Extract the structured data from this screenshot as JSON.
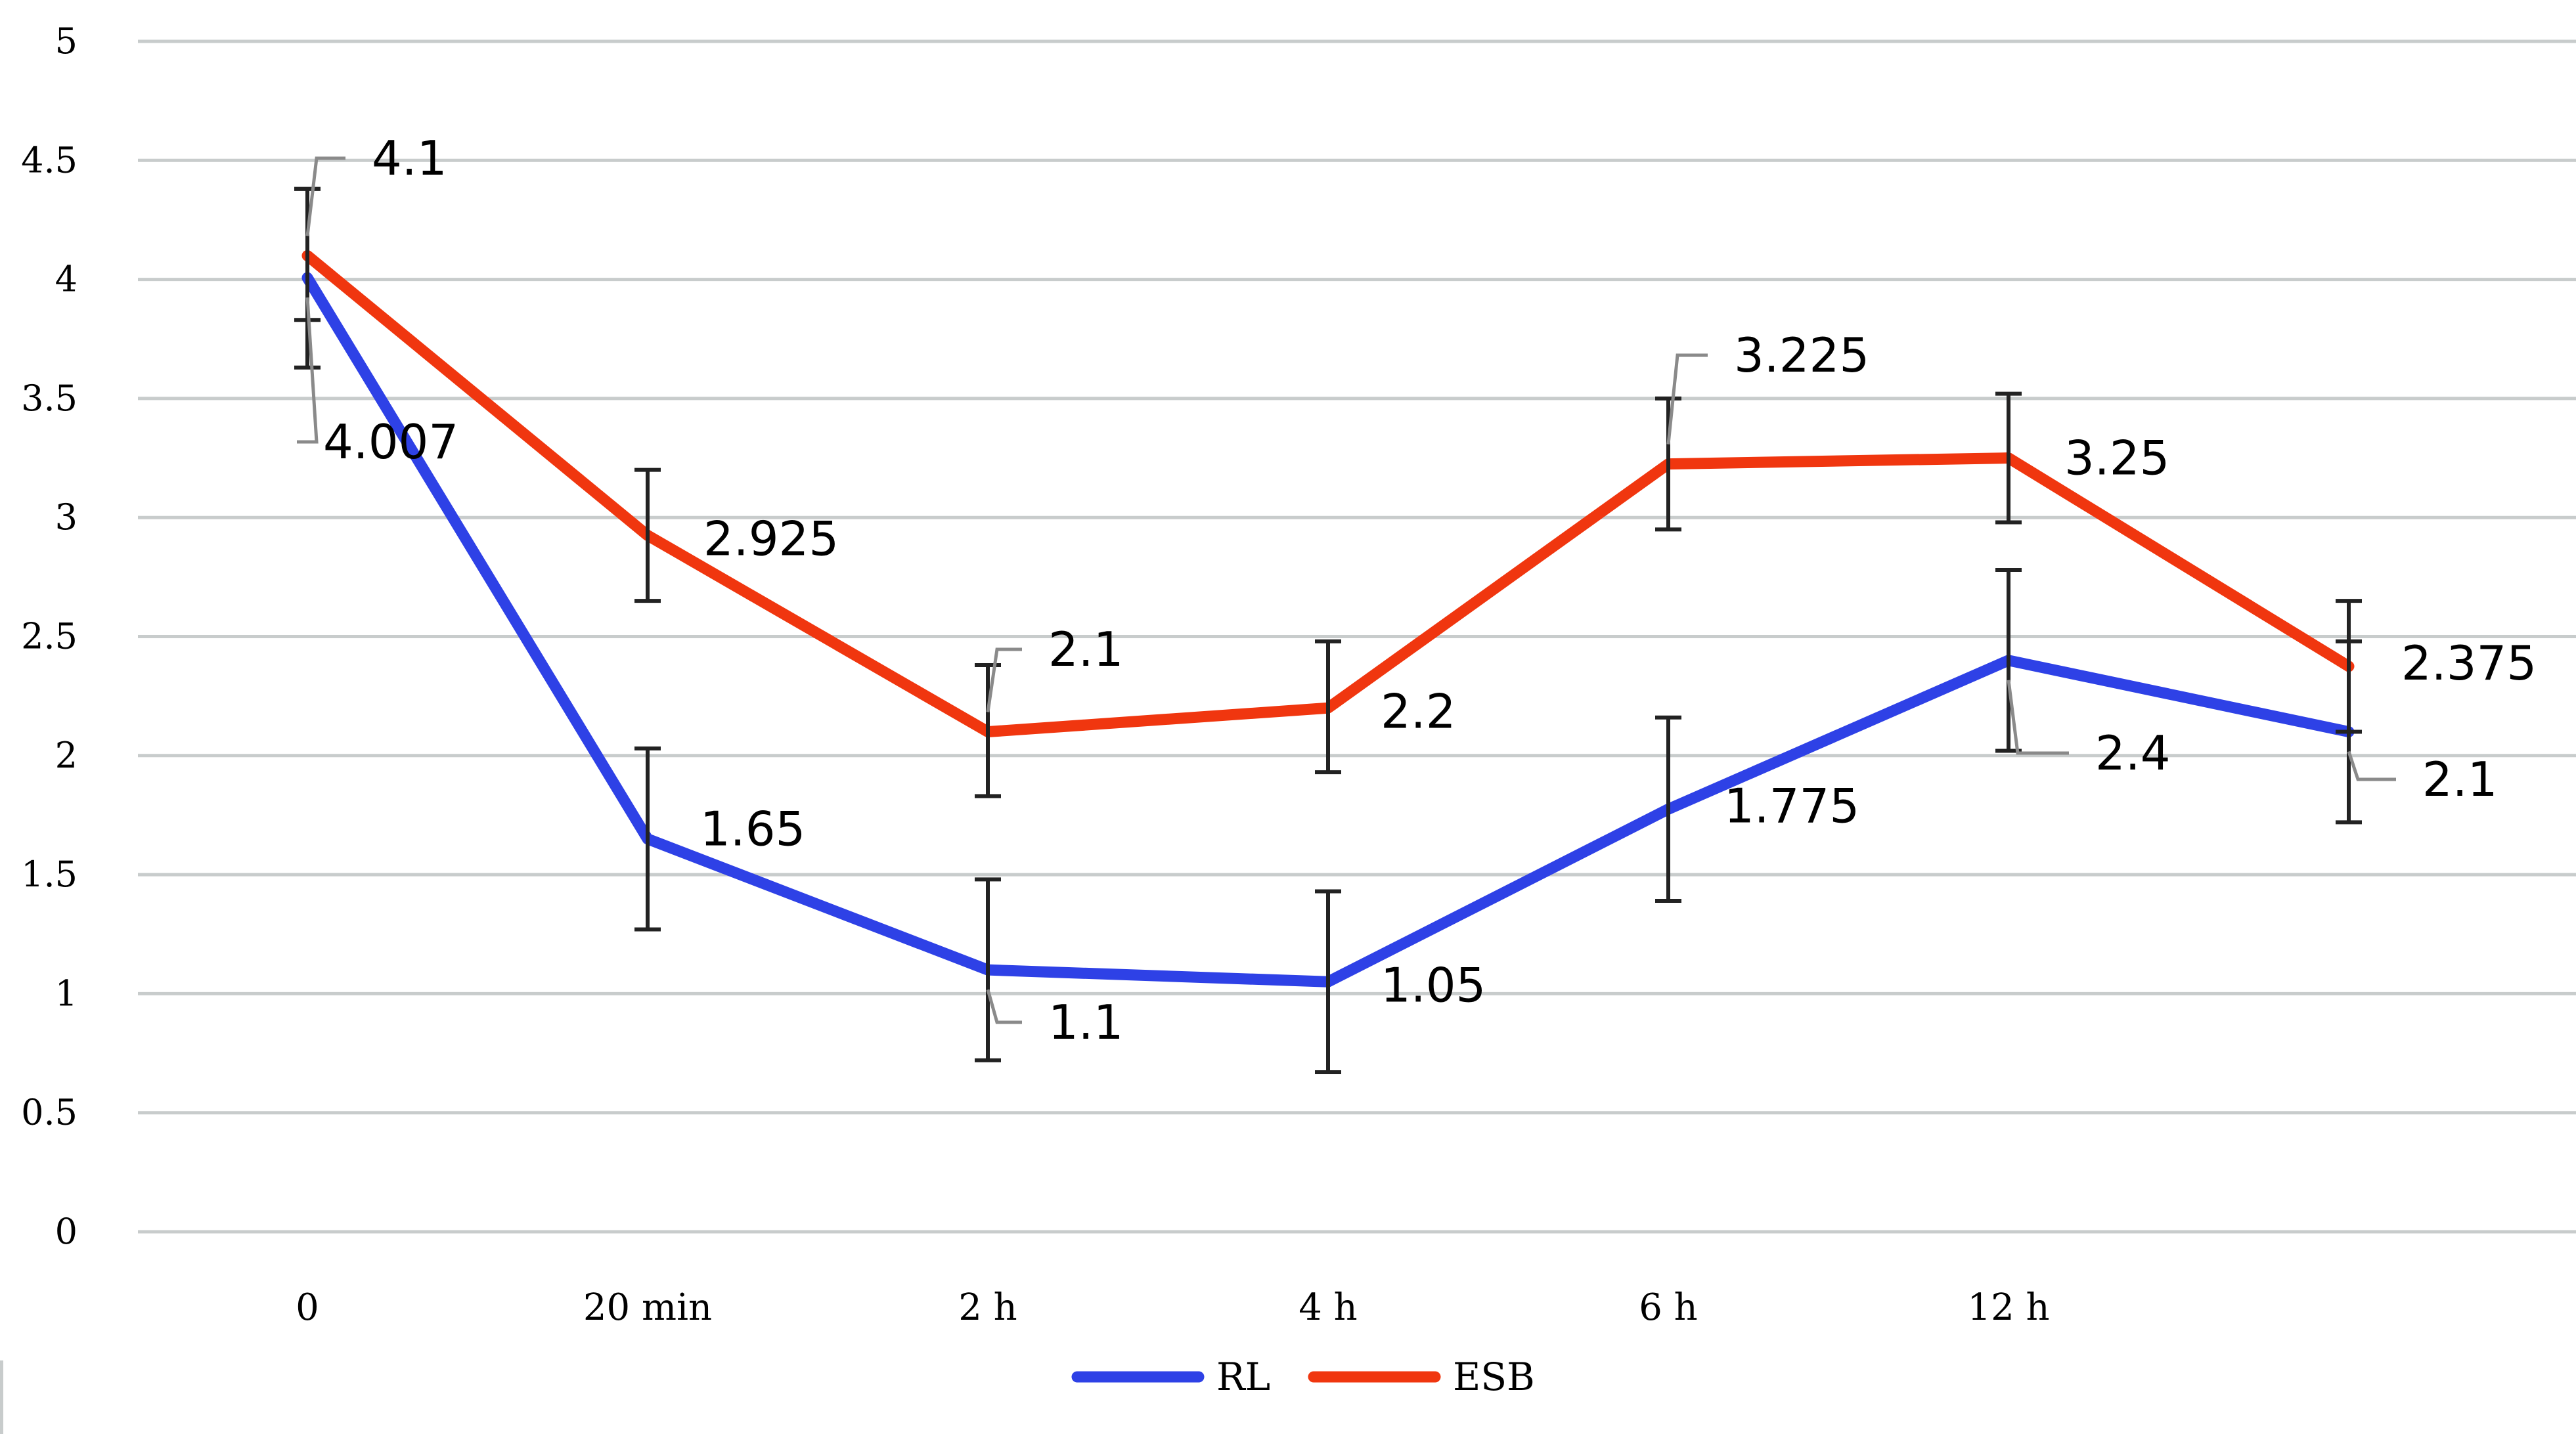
{
  "chart_data": {
    "type": "line",
    "categories": [
      "0",
      "20 min",
      "2 h",
      "4 h",
      "6 h",
      "12 h",
      ""
    ],
    "series": [
      {
        "name": "RL",
        "color": "#2e41e6",
        "values": [
          4.007,
          1.65,
          1.1,
          1.05,
          1.775,
          2.4,
          2.1
        ],
        "labels": [
          "4.007",
          "1.65",
          "1.1",
          "1.05",
          "1.775",
          "2.4",
          "2.1"
        ],
        "error_low": [
          3.63,
          1.27,
          0.72,
          0.67,
          1.39,
          2.02,
          1.72
        ],
        "error_high": [
          4.38,
          2.03,
          1.48,
          1.43,
          2.16,
          2.78,
          2.48
        ]
      },
      {
        "name": "ESB",
        "color": "#f0360f",
        "values": [
          4.1,
          2.925,
          2.1,
          2.2,
          3.225,
          3.25,
          2.375
        ],
        "labels": [
          "4.1",
          "2.925",
          "2.1",
          "2.2",
          "3.225",
          "3.25",
          "2.375"
        ],
        "error_low": [
          3.83,
          2.65,
          1.83,
          1.93,
          2.95,
          2.98,
          2.1
        ],
        "error_high": [
          4.38,
          3.2,
          2.38,
          2.48,
          3.5,
          3.52,
          2.65
        ]
      }
    ],
    "y_ticks": [
      "0",
      "0.5",
      "1",
      "1.5",
      "2",
      "2.5",
      "3",
      "3.5",
      "4",
      "4.5",
      "5"
    ],
    "ylim": [
      0,
      5
    ],
    "grid": true,
    "legend": "bottom-center",
    "title": "",
    "xlabel": "",
    "ylabel": "",
    "gridline_color": "#c8cccc",
    "errorbar_color": "#222222",
    "leader_color": "#8a8a8a"
  }
}
